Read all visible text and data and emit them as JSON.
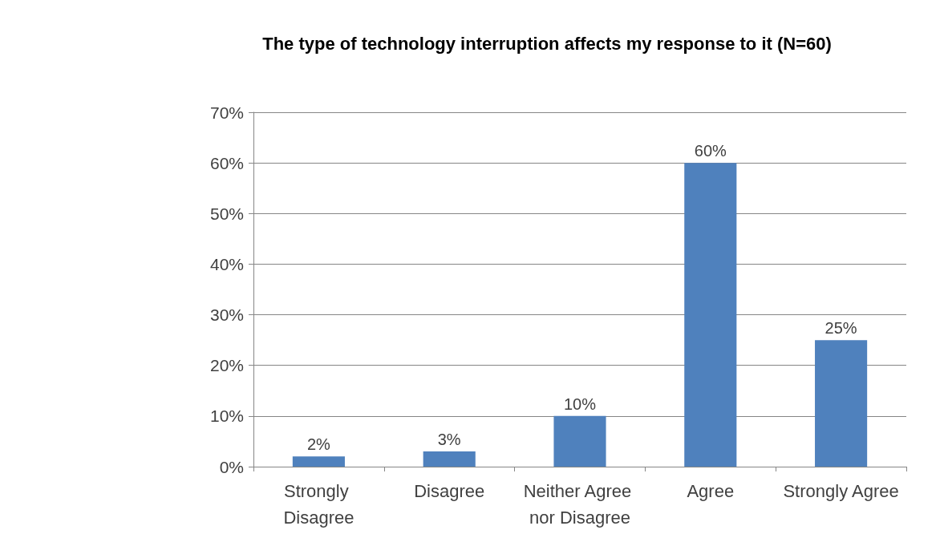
{
  "chart_data": {
    "type": "bar",
    "title": "The type of technology interruption affects my response to it (N=60)",
    "categories": [
      "Strongly Disagree",
      "Disagree",
      "Neither Agree nor Disagree",
      "Agree",
      "Strongly Agree"
    ],
    "values": [
      2,
      3,
      10,
      60,
      25
    ],
    "value_labels": [
      "2%",
      "3%",
      "10%",
      "60%",
      "25%"
    ],
    "color": "#4f81bd",
    "ylim": [
      0,
      70
    ],
    "yticks": [
      {
        "value": 0,
        "label": "0%"
      },
      {
        "value": 10,
        "label": "10%"
      },
      {
        "value": 20,
        "label": "20%"
      },
      {
        "value": 30,
        "label": "30%"
      },
      {
        "value": 40,
        "label": "40%"
      },
      {
        "value": 50,
        "label": "50%"
      },
      {
        "value": 60,
        "label": "60%"
      },
      {
        "value": 70,
        "label": "70%"
      }
    ],
    "grid": "y"
  }
}
